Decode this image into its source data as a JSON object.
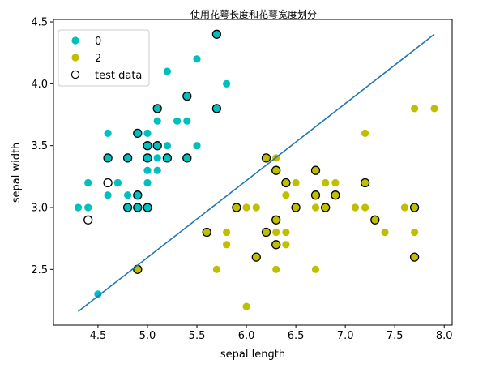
{
  "chart_data": {
    "type": "scatter",
    "title": "使用花萼长度和花萼宽度划分",
    "xlabel": "sepal length",
    "ylabel": "sepal width",
    "xlim": [
      4.05,
      8.08
    ],
    "ylim": [
      2.05,
      4.52
    ],
    "xticks": [
      "4.5",
      "5.0",
      "5.5",
      "6.0",
      "6.5",
      "7.0",
      "7.5",
      "8.0"
    ],
    "yticks": [
      "2.5",
      "3.0",
      "3.5",
      "4.0",
      "4.5"
    ],
    "grid": false,
    "legend": {
      "position": "top-left",
      "entries": [
        {
          "label": "0",
          "color": "#00bfbf",
          "marker": "filled-circle"
        },
        {
          "label": "2",
          "color": "#bfbf00",
          "marker": "filled-circle"
        },
        {
          "label": "test data",
          "color": "#000000",
          "marker": "hollow-circle"
        }
      ]
    },
    "series": [
      {
        "name": "0",
        "color": "#00bfbf",
        "points": [
          [
            4.3,
            3.0
          ],
          [
            4.4,
            3.2
          ],
          [
            4.4,
            3.0
          ],
          [
            4.5,
            2.3
          ],
          [
            4.6,
            3.6
          ],
          [
            4.6,
            3.1
          ],
          [
            4.7,
            3.2
          ],
          [
            4.8,
            3.4
          ],
          [
            4.8,
            3.1
          ],
          [
            4.8,
            3.0
          ],
          [
            4.9,
            3.6
          ],
          [
            4.9,
            3.1
          ],
          [
            4.9,
            3.0
          ],
          [
            4.9,
            2.5
          ],
          [
            5.0,
            3.6
          ],
          [
            5.0,
            3.5
          ],
          [
            5.0,
            3.4
          ],
          [
            5.0,
            3.3
          ],
          [
            5.0,
            3.2
          ],
          [
            5.0,
            3.0
          ],
          [
            5.1,
            3.8
          ],
          [
            5.1,
            3.7
          ],
          [
            5.1,
            3.5
          ],
          [
            5.1,
            3.4
          ],
          [
            5.1,
            3.3
          ],
          [
            5.2,
            4.1
          ],
          [
            5.2,
            3.5
          ],
          [
            5.2,
            3.4
          ],
          [
            5.3,
            3.7
          ],
          [
            5.4,
            3.9
          ],
          [
            5.4,
            3.7
          ],
          [
            5.4,
            3.4
          ],
          [
            5.5,
            4.2
          ],
          [
            5.5,
            3.5
          ],
          [
            5.7,
            4.4
          ],
          [
            5.7,
            3.8
          ],
          [
            5.8,
            4.0
          ],
          [
            4.6,
            3.4
          ],
          [
            4.7,
            3.2
          ]
        ]
      },
      {
        "name": "2",
        "color": "#bfbf00",
        "points": [
          [
            4.9,
            2.5
          ],
          [
            5.6,
            2.8
          ],
          [
            5.7,
            2.5
          ],
          [
            5.8,
            2.8
          ],
          [
            5.8,
            2.7
          ],
          [
            5.9,
            3.0
          ],
          [
            6.0,
            3.0
          ],
          [
            6.0,
            2.2
          ],
          [
            6.1,
            3.0
          ],
          [
            6.1,
            2.6
          ],
          [
            6.2,
            3.4
          ],
          [
            6.2,
            2.8
          ],
          [
            6.3,
            3.4
          ],
          [
            6.3,
            3.3
          ],
          [
            6.3,
            2.9
          ],
          [
            6.3,
            2.8
          ],
          [
            6.3,
            2.7
          ],
          [
            6.3,
            2.5
          ],
          [
            6.4,
            3.2
          ],
          [
            6.4,
            3.1
          ],
          [
            6.4,
            2.8
          ],
          [
            6.4,
            2.7
          ],
          [
            6.5,
            3.2
          ],
          [
            6.5,
            3.0
          ],
          [
            6.7,
            3.3
          ],
          [
            6.7,
            3.1
          ],
          [
            6.7,
            3.0
          ],
          [
            6.7,
            2.5
          ],
          [
            6.8,
            3.2
          ],
          [
            6.8,
            3.0
          ],
          [
            6.9,
            3.2
          ],
          [
            6.9,
            3.1
          ],
          [
            7.1,
            3.0
          ],
          [
            7.2,
            3.6
          ],
          [
            7.2,
            3.2
          ],
          [
            7.2,
            3.0
          ],
          [
            7.3,
            2.9
          ],
          [
            7.4,
            2.8
          ],
          [
            7.6,
            3.0
          ],
          [
            7.7,
            3.8
          ],
          [
            7.7,
            3.0
          ],
          [
            7.7,
            2.8
          ],
          [
            7.7,
            2.6
          ],
          [
            7.9,
            3.8
          ]
        ]
      },
      {
        "name": "test data",
        "color": "#000000",
        "hollow": true,
        "points": [
          [
            4.4,
            2.9
          ],
          [
            4.6,
            3.4
          ],
          [
            4.6,
            3.2
          ],
          [
            4.8,
            3.4
          ],
          [
            4.8,
            3.0
          ],
          [
            4.9,
            3.6
          ],
          [
            4.9,
            3.1
          ],
          [
            4.9,
            3.0
          ],
          [
            4.9,
            2.5
          ],
          [
            5.0,
            3.5
          ],
          [
            5.0,
            3.4
          ],
          [
            5.0,
            3.0
          ],
          [
            5.1,
            3.8
          ],
          [
            5.1,
            3.5
          ],
          [
            5.2,
            3.4
          ],
          [
            5.4,
            3.9
          ],
          [
            5.4,
            3.4
          ],
          [
            5.7,
            4.4
          ],
          [
            5.7,
            3.8
          ],
          [
            5.6,
            2.8
          ],
          [
            5.9,
            3.0
          ],
          [
            6.1,
            2.6
          ],
          [
            6.2,
            3.4
          ],
          [
            6.2,
            2.8
          ],
          [
            6.3,
            3.3
          ],
          [
            6.3,
            2.9
          ],
          [
            6.3,
            2.7
          ],
          [
            6.4,
            3.2
          ],
          [
            6.5,
            3.0
          ],
          [
            6.7,
            3.3
          ],
          [
            6.7,
            3.1
          ],
          [
            6.8,
            3.0
          ],
          [
            6.9,
            3.1
          ],
          [
            7.2,
            3.2
          ],
          [
            7.3,
            2.9
          ],
          [
            7.7,
            3.0
          ],
          [
            7.7,
            2.6
          ]
        ]
      }
    ],
    "decision_line": {
      "color": "#1f77b4",
      "points": [
        [
          4.3,
          2.16
        ],
        [
          7.9,
          4.4
        ]
      ]
    }
  }
}
